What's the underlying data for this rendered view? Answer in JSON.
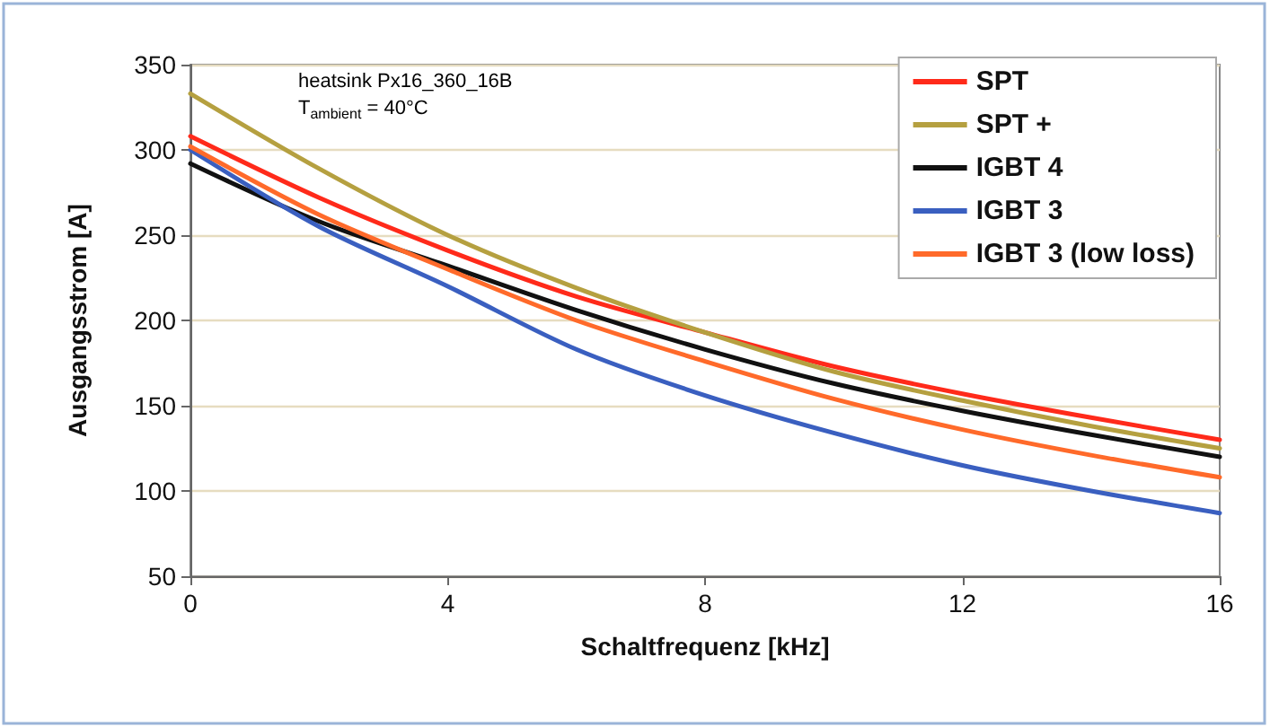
{
  "chart_data": {
    "type": "line",
    "xlabel": "Schaltfrequenz [kHz]",
    "ylabel": "Ausgangsstrom [A]",
    "annotations": [
      "heatsink Px16_360_16B",
      "T$_{ambient}$ = 40°C"
    ],
    "x": [
      0,
      2,
      4,
      6,
      8,
      10,
      12,
      14,
      16
    ],
    "series": [
      {
        "name": "SPT",
        "color": "#ff2a1a",
        "values": [
          308,
          272,
          241,
          214,
          193,
          173,
          157,
          143,
          130
        ]
      },
      {
        "name": "SPT +",
        "color": "#b5a040",
        "values": [
          333,
          289,
          250,
          219,
          193,
          170,
          153,
          138,
          125
        ]
      },
      {
        "name": "IGBT 4",
        "color": "#111111",
        "values": [
          292,
          258,
          232,
          206,
          183,
          163,
          147,
          133,
          120
        ]
      },
      {
        "name": "IGBT 3",
        "color": "#3a5fc0",
        "values": [
          300,
          255,
          220,
          183,
          156,
          134,
          115,
          100,
          87
        ]
      },
      {
        "name": "IGBT 3 (low loss)",
        "color": "#ff6a2a",
        "values": [
          302,
          262,
          230,
          200,
          176,
          154,
          136,
          121,
          108
        ]
      }
    ],
    "xlim": [
      0,
      16
    ],
    "xticks": [
      0,
      4,
      8,
      12,
      16
    ],
    "ylim": [
      50,
      350
    ],
    "yticks": [
      50,
      100,
      150,
      200,
      250,
      300,
      350
    ],
    "grid": "y",
    "legend": "top right",
    "marker": "none",
    "line_style": "solid"
  }
}
